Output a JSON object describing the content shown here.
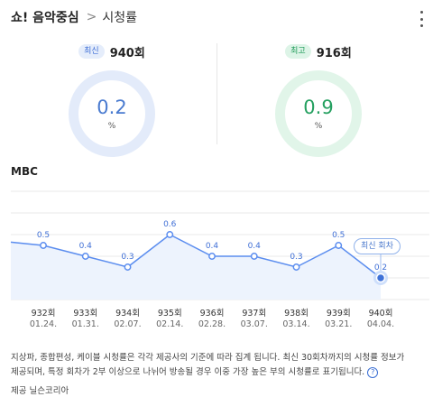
{
  "header": {
    "title": "쇼! 음악중심",
    "separator": ">",
    "subtitle": "시청률"
  },
  "latest": {
    "badge": "최신",
    "episode": "940회",
    "value": "0.2",
    "unit": "%"
  },
  "best": {
    "badge": "최고",
    "episode": "916회",
    "value": "0.9",
    "unit": "%"
  },
  "broadcaster": "MBC",
  "tooltip": "최신 회차",
  "chart_data": {
    "type": "line",
    "categories": [
      "932회",
      "933회",
      "934회",
      "935회",
      "936회",
      "937회",
      "938회",
      "939회",
      "940회"
    ],
    "dates": [
      "01.24.",
      "01.31.",
      "02.07.",
      "02.14.",
      "02.28.",
      "03.07.",
      "03.14.",
      "03.21.",
      "04.04."
    ],
    "values": [
      0.5,
      0.4,
      0.3,
      0.6,
      0.4,
      0.4,
      0.3,
      0.5,
      0.2
    ],
    "data_labels": [
      "0.5",
      "0.4",
      "0.3",
      "0.6",
      "0.4",
      "0.4",
      "0.3",
      "0.5",
      "0.2"
    ],
    "ylim": [
      0,
      1.0
    ],
    "colors": {
      "line": "#5b8def",
      "fill": "#edf3fd",
      "grid": "#e8e8e8"
    }
  },
  "footnote": {
    "line1": "지상파, 종합편성, 케이블 시청률은 각각 제공사의 기준에 따라 집계 됩니다. 최신 30회차까지의 시청률 정보가",
    "line2": "제공되며, 특정 회차가 2부 이상으로 나뉘어 방송될 경우 이중 가장 높은 부의 시청률로 표기됩니다.",
    "help": "?"
  },
  "provider": "제공 닐슨코리아"
}
